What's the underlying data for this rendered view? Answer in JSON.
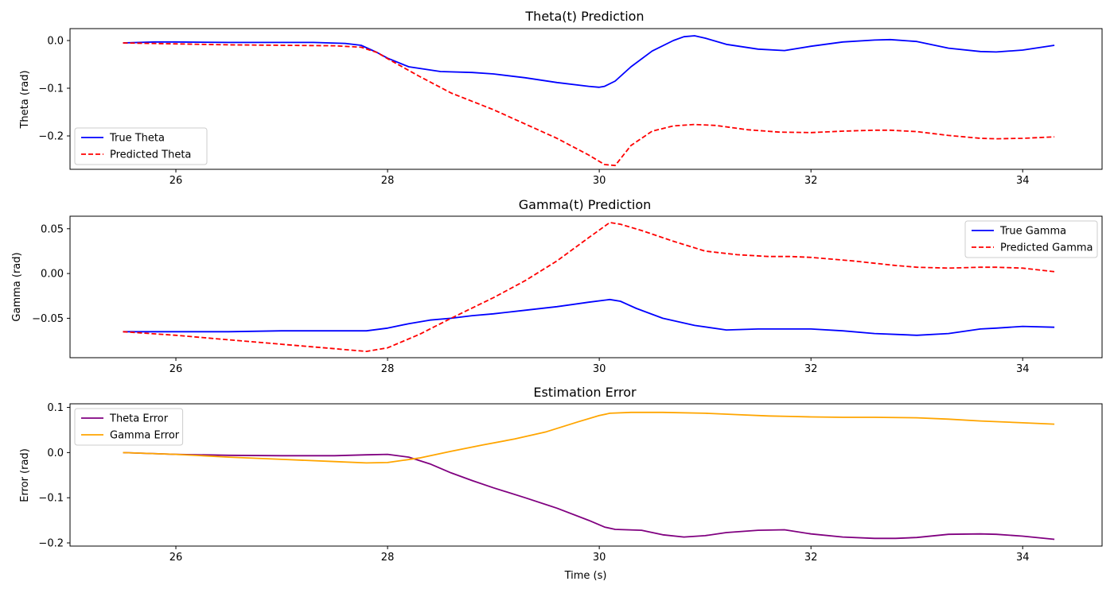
{
  "chart_data": [
    {
      "type": "line",
      "title": "Theta(t) Prediction",
      "xlabel": "",
      "ylabel": "Theta (rad)",
      "xlim": [
        25,
        34.75
      ],
      "ylim": [
        -0.27,
        0.025
      ],
      "xticks": [
        26,
        28,
        30,
        32,
        34
      ],
      "yticks": [
        0.0,
        -0.1,
        -0.2
      ],
      "ytick_labels": [
        "0.0",
        "−0.1",
        "−0.2"
      ],
      "legend_position": "lower-left",
      "grid": false,
      "series": [
        {
          "name": "True Theta",
          "color": "#0000ff",
          "dash": "solid",
          "x": [
            25.5,
            25.8,
            26.0,
            26.5,
            27.0,
            27.3,
            27.6,
            27.75,
            27.9,
            28.0,
            28.2,
            28.5,
            28.8,
            29.0,
            29.3,
            29.6,
            29.9,
            30.0,
            30.05,
            30.15,
            30.3,
            30.5,
            30.7,
            30.8,
            30.9,
            31.0,
            31.2,
            31.5,
            31.75,
            32.0,
            32.3,
            32.6,
            32.75,
            33.0,
            33.3,
            33.6,
            33.75,
            34.0,
            34.3
          ],
          "y": [
            -0.005,
            -0.003,
            -0.003,
            -0.004,
            -0.004,
            -0.004,
            -0.006,
            -0.01,
            -0.025,
            -0.037,
            -0.055,
            -0.065,
            -0.067,
            -0.07,
            -0.078,
            -0.088,
            -0.096,
            -0.098,
            -0.096,
            -0.085,
            -0.055,
            -0.022,
            0.0,
            0.008,
            0.01,
            0.005,
            -0.008,
            -0.018,
            -0.021,
            -0.012,
            -0.003,
            0.001,
            0.002,
            -0.002,
            -0.016,
            -0.023,
            -0.024,
            -0.02,
            -0.01
          ]
        },
        {
          "name": "Predicted Theta",
          "color": "#ff0000",
          "dash": "dashed",
          "x": [
            25.5,
            26.0,
            26.5,
            27.0,
            27.5,
            27.75,
            27.9,
            28.0,
            28.3,
            28.6,
            29.0,
            29.3,
            29.6,
            29.9,
            30.05,
            30.15,
            30.3,
            30.5,
            30.7,
            30.9,
            31.1,
            31.4,
            31.7,
            32.0,
            32.3,
            32.6,
            32.75,
            33.0,
            33.3,
            33.6,
            33.75,
            34.0,
            34.3
          ],
          "y": [
            -0.005,
            -0.007,
            -0.009,
            -0.01,
            -0.011,
            -0.014,
            -0.025,
            -0.038,
            -0.075,
            -0.11,
            -0.145,
            -0.175,
            -0.205,
            -0.24,
            -0.26,
            -0.262,
            -0.22,
            -0.19,
            -0.179,
            -0.176,
            -0.178,
            -0.187,
            -0.192,
            -0.193,
            -0.19,
            -0.188,
            -0.188,
            -0.191,
            -0.199,
            -0.205,
            -0.206,
            -0.205,
            -0.202
          ]
        }
      ]
    },
    {
      "type": "line",
      "title": "Gamma(t) Prediction",
      "xlabel": "",
      "ylabel": "Gamma (rad)",
      "xlim": [
        25,
        34.75
      ],
      "ylim": [
        -0.094,
        0.064
      ],
      "xticks": [
        26,
        28,
        30,
        32,
        34
      ],
      "yticks": [
        0.05,
        0.0,
        -0.05
      ],
      "ytick_labels": [
        "0.05",
        "0.00",
        "−0.05"
      ],
      "legend_position": "upper-right",
      "grid": false,
      "series": [
        {
          "name": "True Gamma",
          "color": "#0000ff",
          "dash": "solid",
          "x": [
            25.5,
            26.0,
            26.5,
            27.0,
            27.5,
            27.8,
            28.0,
            28.2,
            28.4,
            28.6,
            28.8,
            29.0,
            29.3,
            29.6,
            29.9,
            30.1,
            30.2,
            30.35,
            30.6,
            30.9,
            31.2,
            31.5,
            31.75,
            32.0,
            32.3,
            32.6,
            32.8,
            33.0,
            33.3,
            33.6,
            33.75,
            34.0,
            34.3
          ],
          "y": [
            -0.065,
            -0.065,
            -0.065,
            -0.064,
            -0.064,
            -0.064,
            -0.061,
            -0.056,
            -0.052,
            -0.05,
            -0.047,
            -0.045,
            -0.041,
            -0.037,
            -0.032,
            -0.029,
            -0.031,
            -0.039,
            -0.05,
            -0.058,
            -0.063,
            -0.062,
            -0.062,
            -0.062,
            -0.064,
            -0.067,
            -0.068,
            -0.069,
            -0.067,
            -0.062,
            -0.061,
            -0.059,
            -0.06
          ]
        },
        {
          "name": "Predicted Gamma",
          "color": "#ff0000",
          "dash": "dashed",
          "x": [
            25.5,
            26.0,
            26.5,
            27.0,
            27.5,
            27.8,
            28.0,
            28.3,
            28.6,
            29.0,
            29.3,
            29.6,
            29.9,
            30.1,
            30.2,
            30.4,
            30.7,
            31.0,
            31.3,
            31.6,
            31.8,
            32.0,
            32.4,
            32.8,
            33.0,
            33.3,
            33.6,
            33.75,
            34.0,
            34.3
          ],
          "y": [
            -0.065,
            -0.069,
            -0.074,
            -0.079,
            -0.084,
            -0.087,
            -0.083,
            -0.068,
            -0.05,
            -0.027,
            -0.008,
            0.014,
            0.04,
            0.057,
            0.055,
            0.048,
            0.036,
            0.025,
            0.021,
            0.019,
            0.019,
            0.018,
            0.014,
            0.009,
            0.007,
            0.006,
            0.007,
            0.007,
            0.006,
            0.002
          ]
        }
      ]
    },
    {
      "type": "line",
      "title": "Estimation Error",
      "xlabel": "Time (s)",
      "ylabel": "Error (rad)",
      "xlim": [
        25,
        34.75
      ],
      "ylim": [
        -0.207,
        0.108
      ],
      "xticks": [
        26,
        28,
        30,
        32,
        34
      ],
      "yticks": [
        0.1,
        0.0,
        -0.1,
        -0.2
      ],
      "ytick_labels": [
        "0.1",
        "0.0",
        "−0.1",
        "−0.2"
      ],
      "legend_position": "upper-left",
      "grid": false,
      "series": [
        {
          "name": "Theta Error",
          "color": "#800080",
          "dash": "solid",
          "x": [
            25.5,
            26.0,
            26.5,
            27.0,
            27.5,
            27.8,
            28.0,
            28.2,
            28.4,
            28.6,
            28.8,
            29.0,
            29.3,
            29.6,
            29.9,
            30.05,
            30.15,
            30.4,
            30.6,
            30.8,
            31.0,
            31.2,
            31.5,
            31.75,
            32.0,
            32.3,
            32.6,
            32.8,
            33.0,
            33.3,
            33.6,
            33.75,
            34.0,
            34.3
          ],
          "y": [
            0.0,
            -0.004,
            -0.006,
            -0.007,
            -0.007,
            -0.005,
            -0.004,
            -0.01,
            -0.025,
            -0.045,
            -0.062,
            -0.078,
            -0.1,
            -0.123,
            -0.15,
            -0.165,
            -0.17,
            -0.172,
            -0.182,
            -0.187,
            -0.184,
            -0.177,
            -0.172,
            -0.171,
            -0.18,
            -0.187,
            -0.19,
            -0.19,
            -0.188,
            -0.181,
            -0.18,
            -0.181,
            -0.185,
            -0.192
          ]
        },
        {
          "name": "Gamma Error",
          "color": "#ffa500",
          "dash": "solid",
          "x": [
            25.5,
            26.0,
            26.5,
            27.0,
            27.5,
            27.8,
            28.0,
            28.3,
            28.6,
            28.9,
            29.2,
            29.5,
            29.8,
            30.0,
            30.1,
            30.3,
            30.6,
            31.0,
            31.3,
            31.6,
            31.8,
            32.0,
            32.3,
            32.6,
            33.0,
            33.3,
            33.6,
            34.0,
            34.3
          ],
          "y": [
            0.0,
            -0.004,
            -0.01,
            -0.015,
            -0.02,
            -0.023,
            -0.022,
            -0.012,
            0.003,
            0.017,
            0.03,
            0.046,
            0.068,
            0.082,
            0.087,
            0.089,
            0.089,
            0.087,
            0.084,
            0.081,
            0.08,
            0.079,
            0.078,
            0.078,
            0.077,
            0.074,
            0.07,
            0.066,
            0.063
          ]
        }
      ]
    }
  ]
}
